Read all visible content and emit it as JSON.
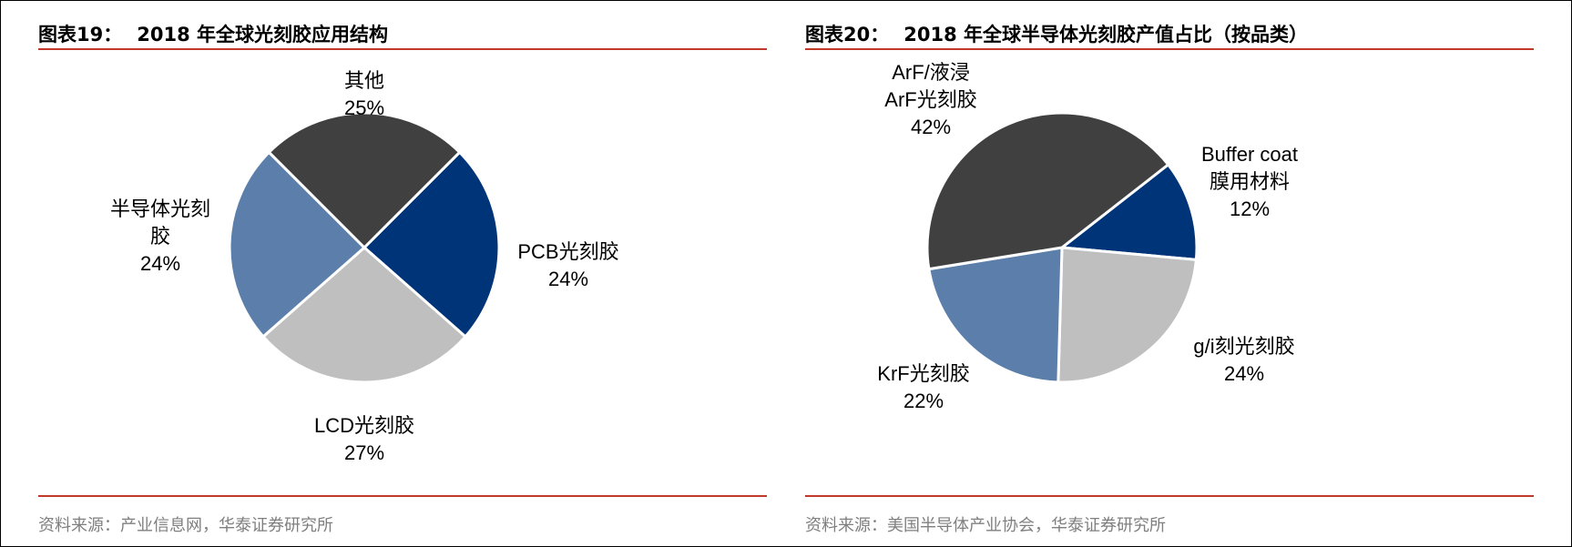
{
  "charts": [
    {
      "figure_no": "图表19：",
      "title": "2018 年全球光刻胶应用结构",
      "source": "资料来源：产业信息网，华泰证券研究所"
    },
    {
      "figure_no": "图表20：",
      "title": "2018 年全球半导体光刻胶产值占比（按品类）",
      "source": "资料来源：美国半导体产业协会，华泰证券研究所"
    }
  ],
  "chart_data": [
    {
      "type": "pie",
      "title": "2018 年全球光刻胶应用结构",
      "slices": [
        {
          "lines": [
            "PCB光刻胶",
            "24%"
          ],
          "value": 24,
          "color": "#003478"
        },
        {
          "lines": [
            "LCD光刻胶",
            "27%"
          ],
          "value": 27,
          "color": "#bfbfbf"
        },
        {
          "lines": [
            "半导体光刻",
            "胶",
            "24%"
          ],
          "value": 24,
          "color": "#5b7faa"
        },
        {
          "lines": [
            "其他",
            "25%"
          ],
          "value": 25,
          "color": "#404040"
        }
      ]
    },
    {
      "type": "pie",
      "title": "2018 年全球半导体光刻胶产值占比（按品类）",
      "slices": [
        {
          "lines": [
            "Buffer coat",
            "膜用材料",
            "12%"
          ],
          "value": 12,
          "color": "#003478"
        },
        {
          "lines": [
            "g/i刻光刻胶",
            "24%"
          ],
          "value": 24,
          "color": "#bfbfbf"
        },
        {
          "lines": [
            "KrF光刻胶",
            "22%"
          ],
          "value": 22,
          "color": "#5b7faa"
        },
        {
          "lines": [
            "ArF/液浸",
            "ArF光刻胶",
            "42%"
          ],
          "value": 42,
          "color": "#404040"
        }
      ]
    }
  ]
}
